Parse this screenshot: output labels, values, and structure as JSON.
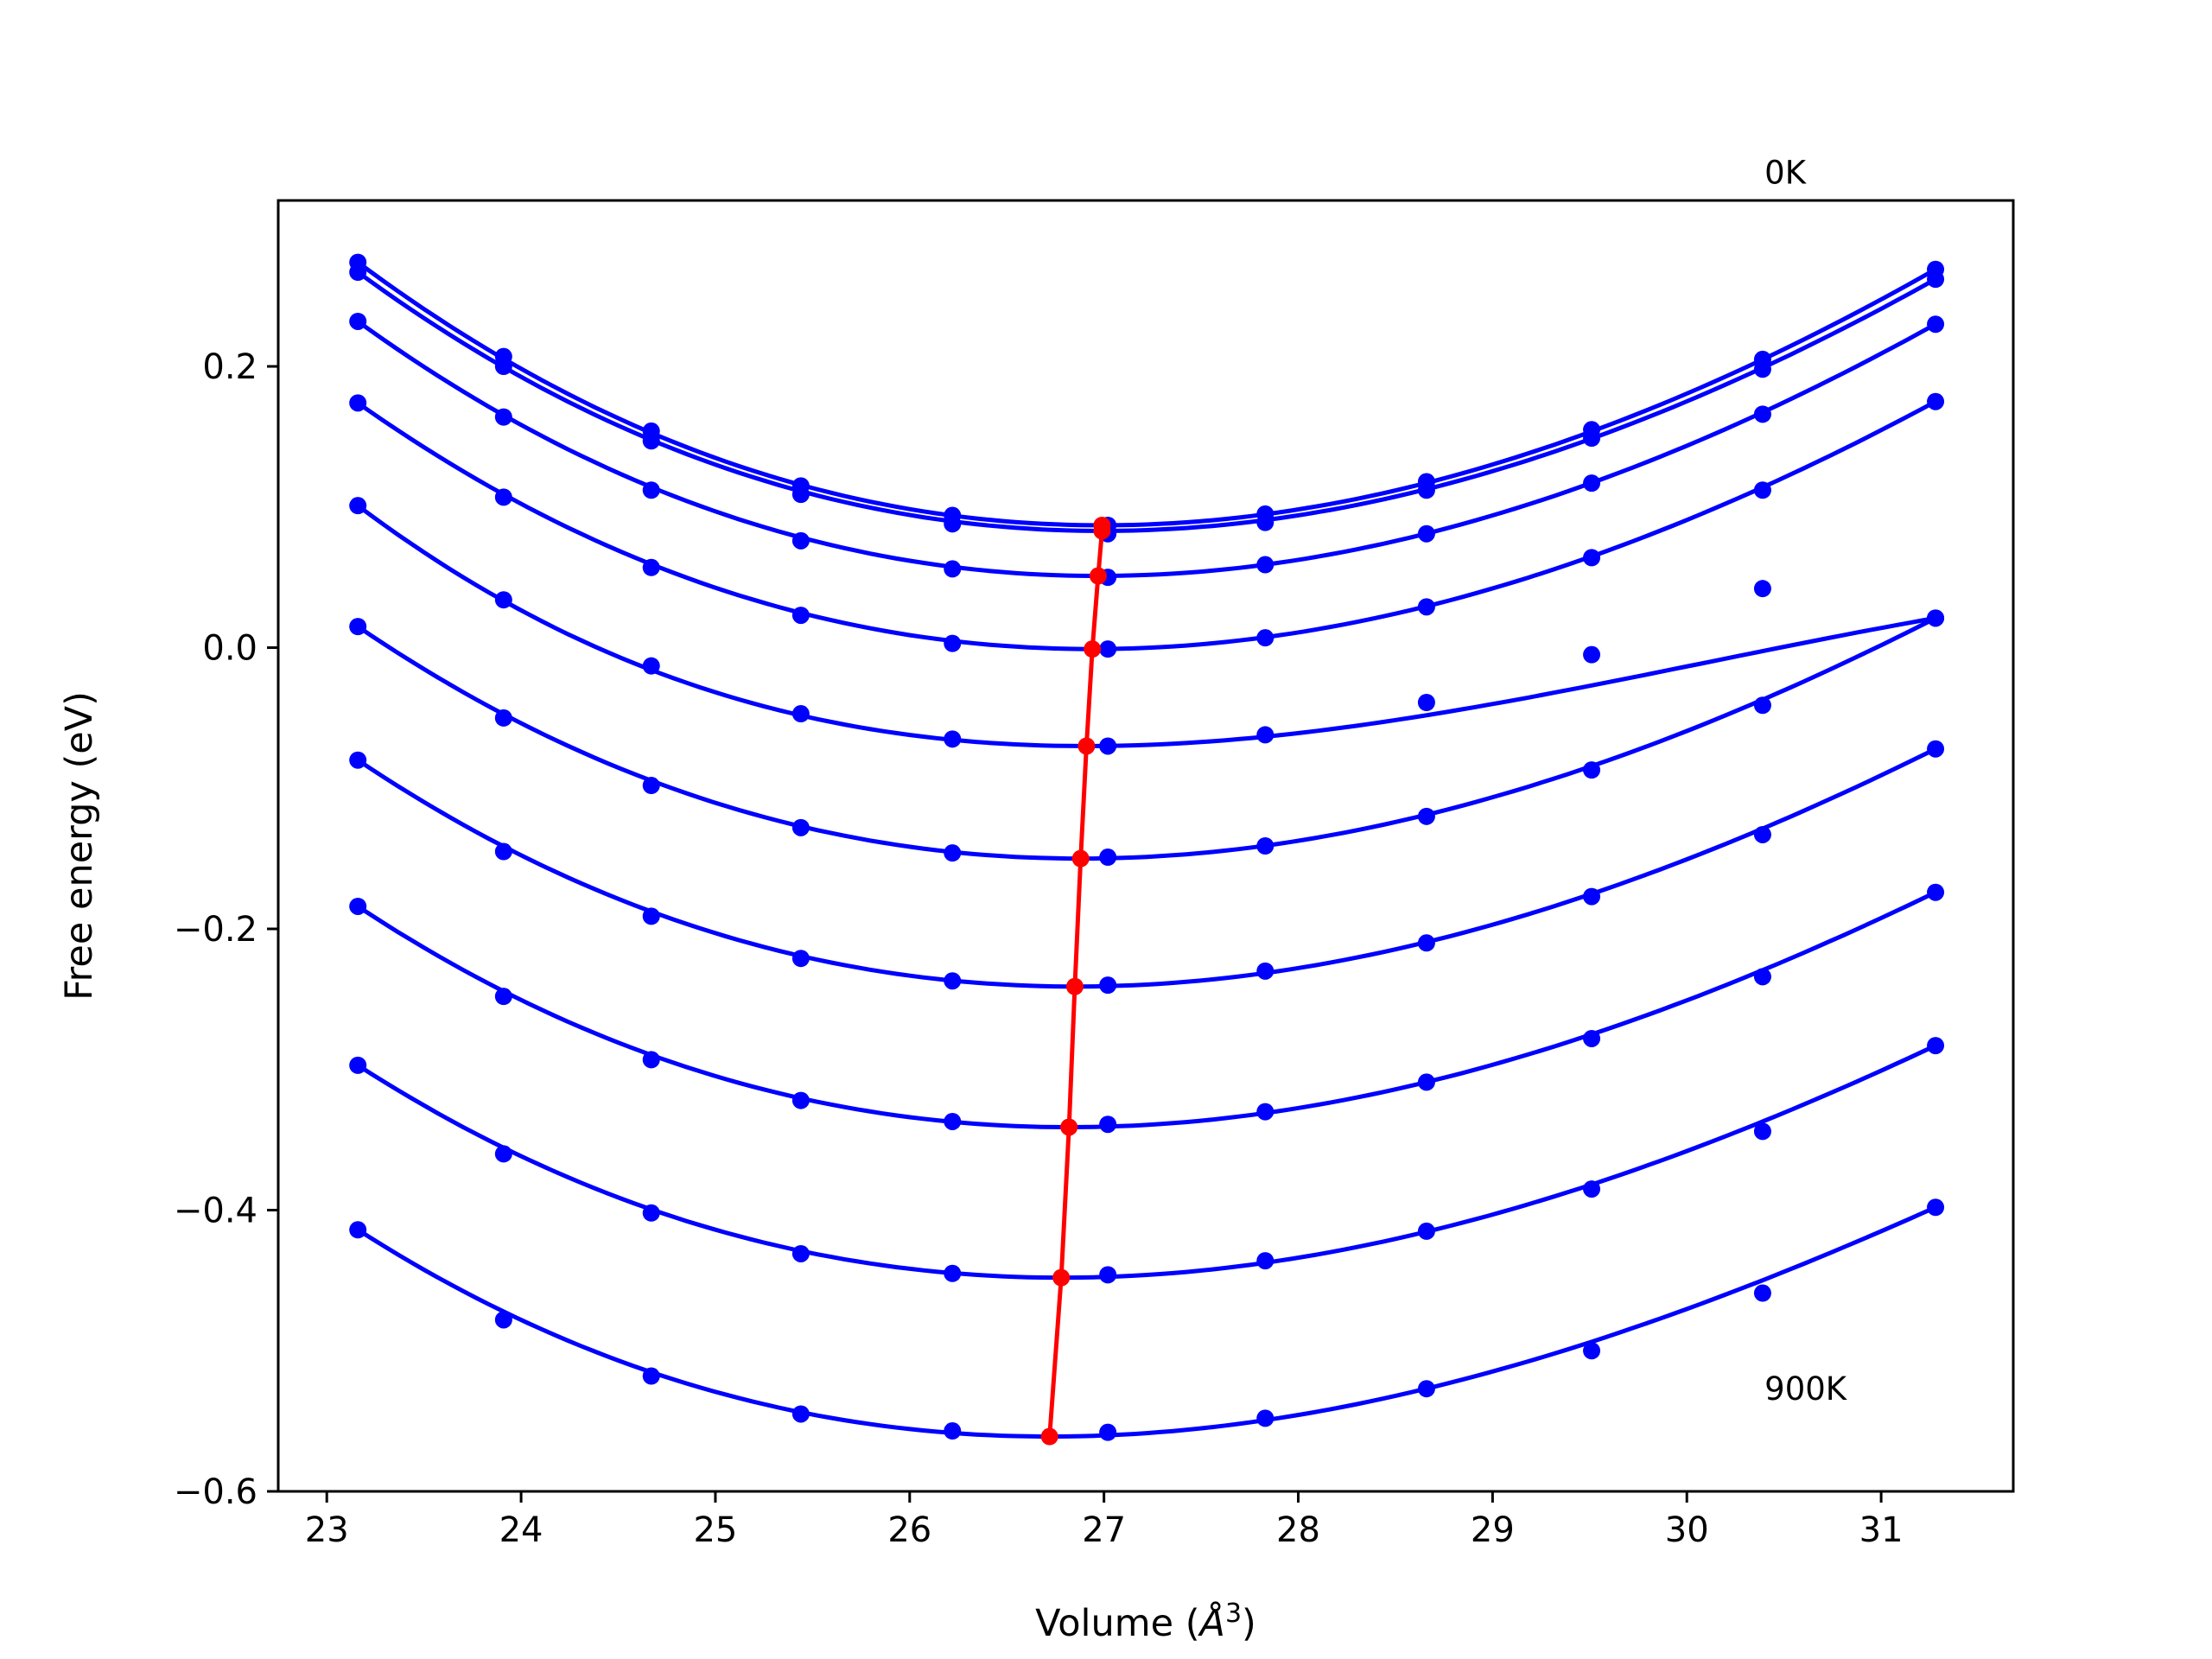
{
  "chart_data": {
    "type": "line",
    "title": "",
    "xlabel": "Volume (Å3)",
    "xlabel_parts": {
      "prefix": "Volume (",
      "symbol": "Å",
      "exp": "3",
      "suffix": ")"
    },
    "ylabel": "Free energy (eV)",
    "xlim": [
      22.75,
      31.68
    ],
    "ylim": [
      -0.6,
      0.318
    ],
    "xticks": [
      23,
      24,
      25,
      26,
      27,
      28,
      29,
      30,
      31
    ],
    "xtick_labels": [
      "23",
      "24",
      "25",
      "26",
      "27",
      "28",
      "29",
      "30",
      "31"
    ],
    "yticks": [
      -0.6,
      -0.4,
      -0.2,
      0.0,
      0.2
    ],
    "ytick_labels": [
      "−0.6",
      "−0.4",
      "−0.2",
      "0.0",
      "0.2"
    ],
    "grid": false,
    "legend": "none",
    "annotations": [
      {
        "text": "0K",
        "x": 30.4,
        "y": 0.33
      },
      {
        "text": "900K",
        "x": 30.4,
        "y": -0.535
      }
    ],
    "colors": {
      "isotherms": "#0000ff",
      "minimum_path": "#ff0000",
      "axes": "#000000"
    },
    "x": [
      23.16,
      23.91,
      24.67,
      25.44,
      26.22,
      27.02,
      27.83,
      28.66,
      29.51,
      30.39,
      31.28
    ],
    "series": [
      {
        "values": [
          0.274,
          0.207,
          0.154,
          0.115,
          0.094,
          0.087,
          0.095,
          0.118,
          0.155,
          0.205,
          0.269
        ],
        "v0": 26.99,
        "e0": 0.087
      },
      {
        "values": [
          0.267,
          0.2,
          0.147,
          0.109,
          0.088,
          0.081,
          0.089,
          0.112,
          0.149,
          0.198,
          0.262
        ],
        "v0": 26.99,
        "e0": 0.083
      },
      {
        "values": [
          0.232,
          0.164,
          0.112,
          0.076,
          0.056,
          0.05,
          0.059,
          0.081,
          0.117,
          0.166,
          0.23
        ],
        "v0": 26.97,
        "e0": 0.051
      },
      {
        "values": [
          0.174,
          0.107,
          0.057,
          0.023,
          0.003,
          -0.001,
          0.007,
          0.029,
          0.064,
          0.112,
          0.175
        ],
        "v0": 26.94,
        "e0": -0.001
      },
      {
        "values": [
          0.101,
          0.034,
          -0.013,
          -0.047,
          -0.065,
          -0.07,
          -0.062,
          -0.039,
          -0.005,
          0.042,
          0.021
        ],
        "v0": 26.91,
        "e0": -0.07
      },
      {
        "values": [
          0.015,
          -0.05,
          -0.098,
          -0.128,
          -0.146,
          -0.149,
          -0.141,
          -0.12,
          -0.087,
          -0.041,
          0.021
        ],
        "v0": 26.88,
        "e0": -0.15
      },
      {
        "values": [
          -0.08,
          -0.145,
          -0.191,
          -0.221,
          -0.237,
          -0.24,
          -0.23,
          -0.21,
          -0.177,
          -0.133,
          -0.072
        ],
        "v0": 26.85,
        "e0": -0.241
      },
      {
        "values": [
          -0.184,
          -0.248,
          -0.293,
          -0.322,
          -0.337,
          -0.339,
          -0.33,
          -0.309,
          -0.278,
          -0.234,
          -0.174
        ],
        "v0": 26.82,
        "e0": -0.341
      },
      {
        "values": [
          -0.297,
          -0.36,
          -0.402,
          -0.431,
          -0.445,
          -0.446,
          -0.436,
          -0.415,
          -0.385,
          -0.344,
          -0.283
        ],
        "v0": 26.78,
        "e0": -0.448
      },
      {
        "values": [
          -0.414,
          -0.478,
          -0.518,
          -0.545,
          -0.557,
          -0.558,
          -0.548,
          -0.527,
          -0.5,
          -0.459,
          -0.398
        ],
        "v0": 26.72,
        "e0": -0.561
      }
    ],
    "minimum_path": {
      "x": [
        26.99,
        26.99,
        26.97,
        26.94,
        26.91,
        26.88,
        26.85,
        26.82,
        26.78,
        26.72
      ],
      "y": [
        0.087,
        0.083,
        0.051,
        -0.001,
        -0.07,
        -0.15,
        -0.241,
        -0.341,
        -0.448,
        -0.561
      ]
    }
  }
}
